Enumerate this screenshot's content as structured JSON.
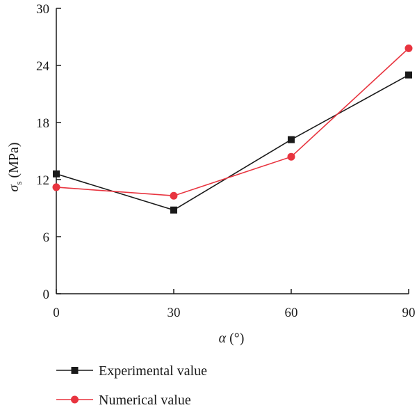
{
  "chart_data": {
    "type": "line",
    "x": [
      0,
      30,
      60,
      90
    ],
    "xticks": [
      "0",
      "30",
      "60",
      "90"
    ],
    "yticks": [
      "0",
      "6",
      "12",
      "18",
      "24",
      "30"
    ],
    "xlim": [
      0,
      90
    ],
    "ylim": [
      0,
      30
    ],
    "xlabel": {
      "symbol": "α",
      "unit": " (°)"
    },
    "ylabel": {
      "symbol": "σ",
      "subscript": "s",
      "unit": " (MPa)"
    },
    "grid": false,
    "legend_position": "bottom-left",
    "series": [
      {
        "name": "Experimental value",
        "values": [
          12.6,
          8.8,
          16.2,
          23.0
        ],
        "color": "#1a1a1a",
        "marker": "square"
      },
      {
        "name": "Numerical value",
        "values": [
          11.2,
          10.3,
          14.4,
          25.8
        ],
        "color": "#e8343f",
        "marker": "circle"
      }
    ]
  }
}
